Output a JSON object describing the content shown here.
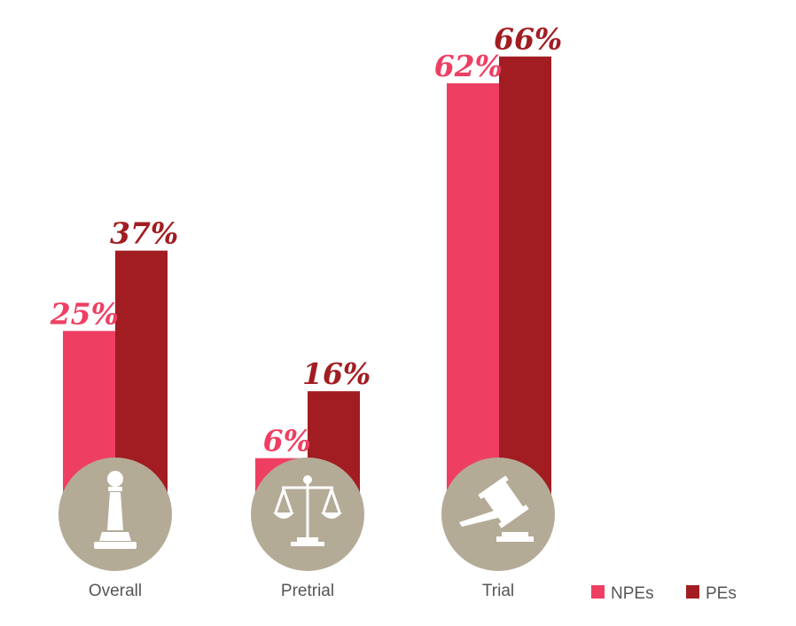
{
  "chart_data": {
    "type": "bar",
    "categories": [
      "Overall",
      "Pretrial",
      "Trial"
    ],
    "series": [
      {
        "name": "NPEs",
        "values": [
          25,
          6,
          62
        ],
        "labels": [
          "25%",
          "6%",
          "62%"
        ],
        "color": "#ee3f62"
      },
      {
        "name": "PEs",
        "values": [
          37,
          16,
          66
        ],
        "labels": [
          "37%",
          "16%",
          "66%"
        ],
        "color": "#a11d22"
      }
    ],
    "category_icons": [
      "pawn-icon",
      "scales-icon",
      "gavel-icon"
    ],
    "icon_color": "#b4ab97",
    "ylim": [
      0,
      100
    ],
    "grid": false,
    "legend": "bottom-right",
    "title": "",
    "xlabel": "",
    "ylabel": ""
  }
}
